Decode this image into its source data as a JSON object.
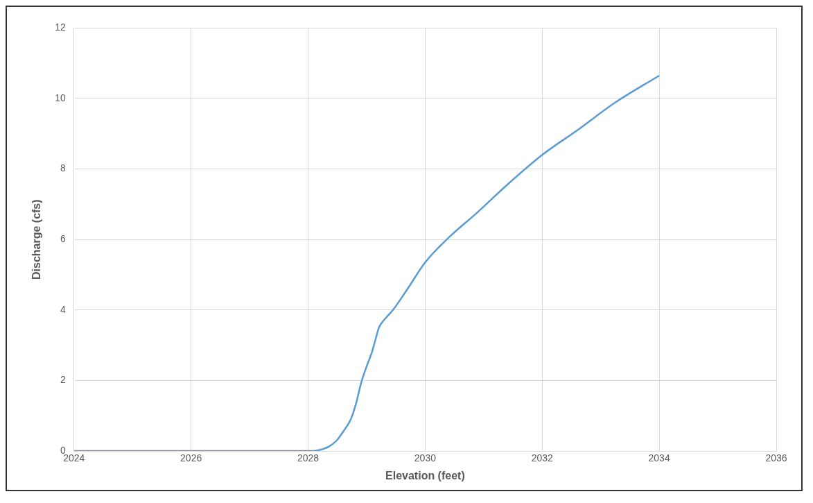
{
  "chart_data": {
    "type": "line",
    "xlabel": "Elevation (feet)",
    "ylabel": "Discharge (cfs)",
    "x": [
      2024,
      2025,
      2026,
      2027,
      2028,
      2028.1,
      2028.2,
      2028.35,
      2028.49,
      2028.6,
      2028.73,
      2028.82,
      2028.91,
      2029.0,
      2029.09,
      2029.15,
      2029.21,
      2029.3,
      2029.45,
      2029.7,
      2030,
      2030.4,
      2030.88,
      2031.4,
      2032,
      2032.6,
      2033.26,
      2034
    ],
    "series": [
      {
        "color": "#5b9bd5",
        "values": [
          0,
          0,
          0,
          0,
          0,
          0,
          0.03,
          0.12,
          0.3,
          0.55,
          0.9,
          1.35,
          1.95,
          2.4,
          2.8,
          3.15,
          3.5,
          3.72,
          4.0,
          4.6,
          5.35,
          6.05,
          6.75,
          7.55,
          8.4,
          9.1,
          9.9,
          10.65
        ]
      }
    ],
    "xlim": [
      2024,
      2036
    ],
    "xticks": [
      2024,
      2026,
      2028,
      2030,
      2032,
      2034,
      2036
    ],
    "ylim": [
      0,
      12
    ],
    "yticks": [
      0,
      2,
      4,
      6,
      8,
      10,
      12
    ],
    "grid": true,
    "legend": false,
    "marker": "none",
    "line_style": "solid"
  }
}
